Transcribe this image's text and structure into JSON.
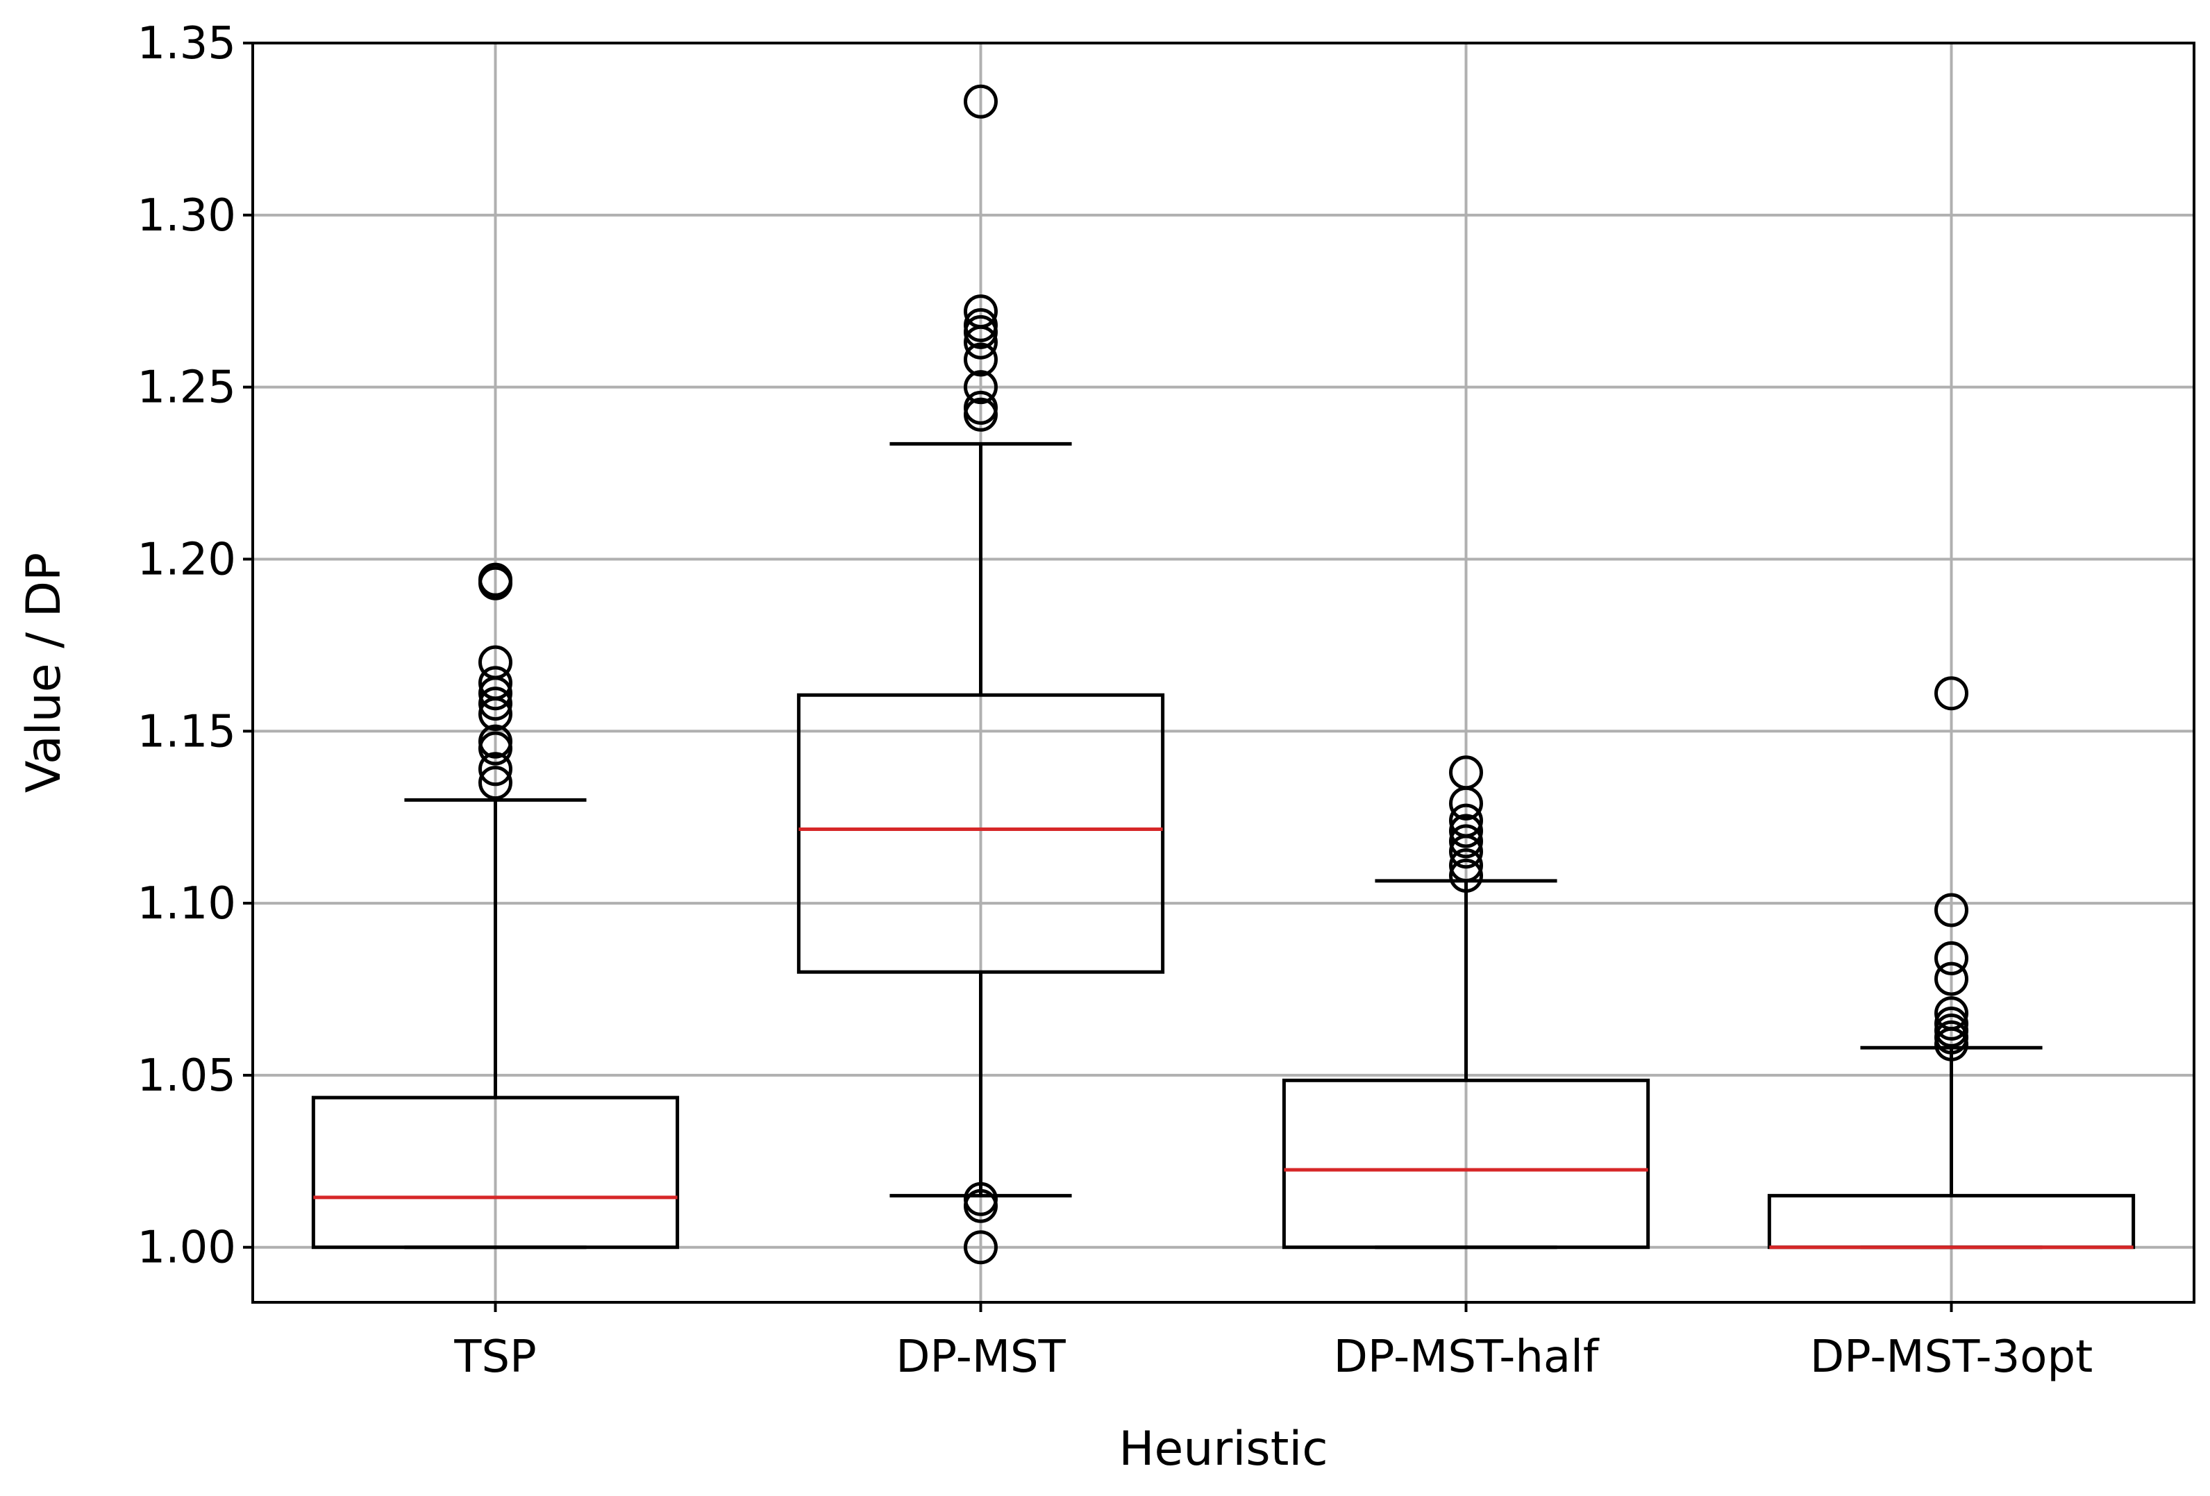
{
  "chart_data": {
    "type": "box",
    "title": "",
    "xlabel": "Heuristic",
    "ylabel": "Value / DP",
    "ylim": [
      0.984,
      1.35
    ],
    "yticks": [
      "1.00",
      "1.05",
      "1.10",
      "1.15",
      "1.20",
      "1.25",
      "1.30",
      "1.35"
    ],
    "grid": true,
    "colors": {
      "box": "#000000",
      "median": "#d62728",
      "grid": "#b0b0b0"
    },
    "categories": [
      "TSP",
      "DP-MST",
      "DP-MST-half",
      "DP-MST-3opt"
    ],
    "boxes": [
      {
        "name": "TSP",
        "whisker_low": 1.0,
        "q1": 1.0,
        "median": 1.0145,
        "q3": 1.0435,
        "whisker_high": 1.13,
        "outliers": [
          1.135,
          1.139,
          1.145,
          1.147,
          1.155,
          1.158,
          1.161,
          1.164,
          1.17,
          1.193,
          1.194
        ]
      },
      {
        "name": "DP-MST",
        "whisker_low": 1.015,
        "q1": 1.08,
        "median": 1.1215,
        "q3": 1.1605,
        "whisker_high": 1.2335,
        "outliers": [
          1.0,
          1.012,
          1.014,
          1.242,
          1.244,
          1.25,
          1.258,
          1.263,
          1.266,
          1.268,
          1.272,
          1.333
        ]
      },
      {
        "name": "DP-MST-half",
        "whisker_low": 1.0,
        "q1": 1.0,
        "median": 1.0225,
        "q3": 1.0485,
        "whisker_high": 1.1065,
        "outliers": [
          1.108,
          1.111,
          1.115,
          1.118,
          1.121,
          1.124,
          1.129,
          1.138
        ]
      },
      {
        "name": "DP-MST-3opt",
        "whisker_low": 1.0,
        "q1": 1.0,
        "median": 1.0,
        "q3": 1.015,
        "whisker_high": 1.058,
        "outliers": [
          1.059,
          1.061,
          1.063,
          1.065,
          1.068,
          1.078,
          1.084,
          1.098,
          1.161
        ]
      }
    ]
  }
}
